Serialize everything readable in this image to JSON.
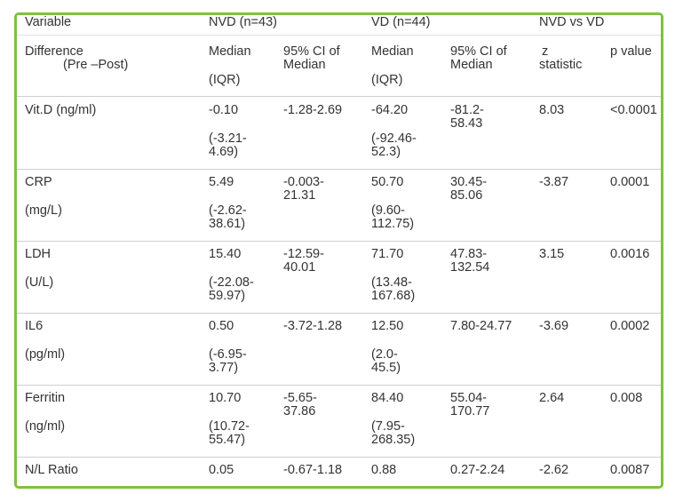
{
  "header": {
    "variable": "Variable",
    "nvd": "NVD (n=43)",
    "vd": "VD (n=44)",
    "compare": "NVD vs VD"
  },
  "subheader": {
    "difference_line1": "Difference",
    "difference_line2": "(Pre –Post)",
    "nvd_median_l1": "Median",
    "nvd_median_l2": "(IQR)",
    "nvd_ci_l1": "95% CI of",
    "nvd_ci_l2": "Median",
    "vd_median_l1": "Median",
    "vd_median_l2": "(IQR)",
    "vd_ci_l1": "95% CI of",
    "vd_ci_l2": "Median",
    "z_l1": "z",
    "z_l2": "statistic",
    "p": "p value"
  },
  "rows": [
    {
      "var_l1": "Vit.D (ng/ml)",
      "var_l2": "",
      "nvd_median": "-0.10",
      "nvd_iqr_l1": "(-3.21-",
      "nvd_iqr_l2": "4.69)",
      "nvd_ci_l1": "-1.28-2.69",
      "nvd_ci_l2": "",
      "vd_median": "-64.20",
      "vd_iqr_l1": "(-92.46-",
      "vd_iqr_l2": "52.3)",
      "vd_ci_l1": "-81.2-",
      "vd_ci_l2": "58.43",
      "z": "8.03",
      "p": "<0.0001"
    },
    {
      "var_l1": "CRP",
      "var_l2": "(mg/L)",
      "nvd_median": "5.49",
      "nvd_iqr_l1": "(-2.62-",
      "nvd_iqr_l2": "38.61)",
      "nvd_ci_l1": "-0.003-",
      "nvd_ci_l2": "21.31",
      "vd_median": "50.70",
      "vd_iqr_l1": "(9.60-",
      "vd_iqr_l2": "112.75)",
      "vd_ci_l1": "30.45-",
      "vd_ci_l2": "85.06",
      "z": "-3.87",
      "p": "0.0001"
    },
    {
      "var_l1": "LDH",
      "var_l2": "(U/L)",
      "nvd_median": "15.40",
      "nvd_iqr_l1": "(-22.08-",
      "nvd_iqr_l2": "59.97)",
      "nvd_ci_l1": "-12.59-",
      "nvd_ci_l2": "40.01",
      "vd_median": "71.70",
      "vd_iqr_l1": "(13.48-",
      "vd_iqr_l2": "167.68)",
      "vd_ci_l1": "47.83-",
      "vd_ci_l2": "132.54",
      "z": "3.15",
      "p": "0.0016"
    },
    {
      "var_l1": "IL6",
      "var_l2": "(pg/ml)",
      "nvd_median": "0.50",
      "nvd_iqr_l1": "(-6.95-",
      "nvd_iqr_l2": "3.77)",
      "nvd_ci_l1": "-3.72-1.28",
      "nvd_ci_l2": "",
      "vd_median": "12.50",
      "vd_iqr_l1": "(2.0-",
      "vd_iqr_l2": "45.5)",
      "vd_ci_l1": "7.80-24.77",
      "vd_ci_l2": "",
      "z": "-3.69",
      "p": "0.0002"
    },
    {
      "var_l1": "Ferritin",
      "var_l2": "(ng/ml)",
      "nvd_median": "10.70",
      "nvd_iqr_l1": "(10.72-",
      "nvd_iqr_l2": "55.47)",
      "nvd_ci_l1": "-5.65-",
      "nvd_ci_l2": "37.86",
      "vd_median": "84.40",
      "vd_iqr_l1": "(7.95-",
      "vd_iqr_l2": "268.35)",
      "vd_ci_l1": "55.04-",
      "vd_ci_l2": "170.77",
      "z": "2.64",
      "p": "0.008"
    },
    {
      "var_l1": "N/L Ratio",
      "var_l2": "",
      "nvd_median": "0.05",
      "nvd_iqr_l1": "",
      "nvd_iqr_l2": "",
      "nvd_ci_l1": "-0.67-1.18",
      "nvd_ci_l2": "",
      "vd_median": "0.88",
      "vd_iqr_l1": "",
      "vd_iqr_l2": "",
      "vd_ci_l1": "0.27-2.24",
      "vd_ci_l2": "",
      "z": "-2.62",
      "p": "0.0087"
    }
  ],
  "colors": {
    "border": "#7cc243",
    "text": "#333333",
    "rule": "#cfcfcf"
  }
}
